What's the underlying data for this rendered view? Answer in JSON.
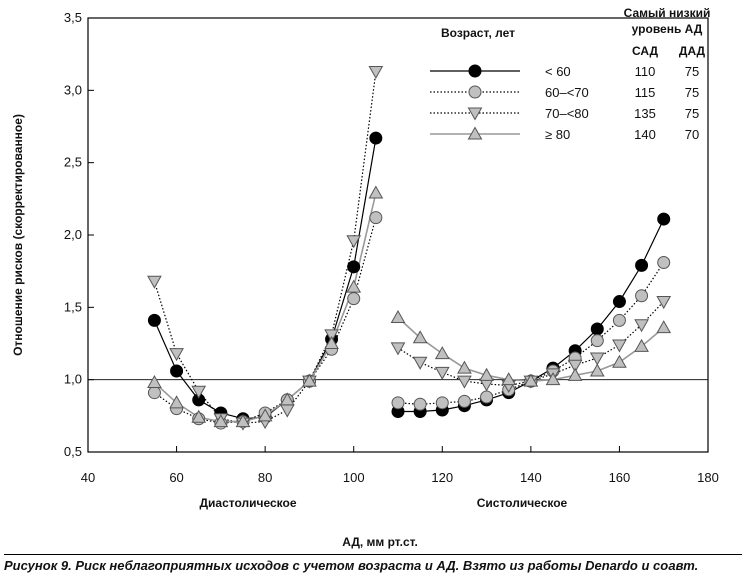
{
  "chart_data": {
    "type": "line",
    "ylabel": "Отношение рисков (скорректированное)",
    "xlabel": "АД, мм рт.ст.",
    "panel_labels": {
      "diastolic": "Диастолическое",
      "systolic": "Систолическое"
    },
    "ylim": [
      0.5,
      3.5
    ],
    "xlim": [
      40,
      180
    ],
    "y_ticks": [
      "0,5",
      "1,0",
      "1,5",
      "2,0",
      "2,5",
      "3,0",
      "3,5"
    ],
    "x_ticks": [
      "40",
      "60",
      "80",
      "100",
      "120",
      "140",
      "160",
      "180"
    ],
    "reference_line_y": 1.0,
    "grid": false,
    "legend": {
      "title": "Возраст, лет",
      "header_line1": "Самый низкий",
      "header_line2": "уровень АД",
      "col_sad": "САД",
      "col_dad": "ДАД",
      "rows": [
        {
          "label": "< 60",
          "sad": "110",
          "dad": "75"
        },
        {
          "label": "60–<70",
          "sad": "115",
          "dad": "75"
        },
        {
          "label": "70–<80",
          "sad": "135",
          "dad": "75"
        },
        {
          "label": "≥ 80",
          "sad": "140",
          "dad": "70"
        }
      ]
    },
    "series": [
      {
        "name": "< 60",
        "marker": "circle-filled",
        "line": "solid",
        "color": "#000000",
        "diastolic": {
          "x": [
            55,
            60,
            65,
            70,
            75,
            80,
            85,
            90,
            95,
            100,
            105
          ],
          "y": [
            1.41,
            1.06,
            0.86,
            0.77,
            0.73,
            0.74,
            0.86,
            0.99,
            1.28,
            1.78,
            2.67
          ]
        },
        "systolic": {
          "x": [
            110,
            115,
            120,
            125,
            130,
            135,
            140,
            145,
            150,
            155,
            160,
            165,
            170
          ],
          "y": [
            0.78,
            0.78,
            0.79,
            0.82,
            0.86,
            0.91,
            0.99,
            1.08,
            1.2,
            1.35,
            1.54,
            1.79,
            2.11
          ]
        }
      },
      {
        "name": "60–<70",
        "marker": "circle-gray",
        "line": "dotted",
        "color": "#c0c0c0",
        "diastolic": {
          "x": [
            55,
            60,
            65,
            70,
            75,
            80,
            85,
            90,
            95,
            100,
            105
          ],
          "y": [
            0.91,
            0.8,
            0.73,
            0.7,
            0.71,
            0.77,
            0.86,
            0.99,
            1.21,
            1.56,
            2.12
          ]
        },
        "systolic": {
          "x": [
            110,
            115,
            120,
            125,
            130,
            135,
            140,
            145,
            150,
            155,
            160,
            165,
            170
          ],
          "y": [
            0.84,
            0.83,
            0.84,
            0.85,
            0.88,
            0.93,
            0.99,
            1.06,
            1.15,
            1.27,
            1.41,
            1.58,
            1.81
          ]
        }
      },
      {
        "name": "70–<80",
        "marker": "triangle-down",
        "line": "dotted",
        "color": "#c0c0c0",
        "diastolic": {
          "x": [
            55,
            60,
            65,
            70,
            75,
            80,
            85,
            90,
            95,
            100,
            105
          ],
          "y": [
            1.68,
            1.18,
            0.92,
            0.73,
            0.7,
            0.71,
            0.79,
            0.99,
            1.31,
            1.96,
            3.13
          ]
        },
        "systolic": {
          "x": [
            110,
            115,
            120,
            125,
            130,
            135,
            140,
            145,
            150,
            155,
            160,
            165,
            170
          ],
          "y": [
            1.22,
            1.12,
            1.05,
            0.99,
            0.97,
            0.96,
            0.99,
            1.04,
            1.1,
            1.15,
            1.24,
            1.38,
            1.54
          ]
        }
      },
      {
        "name": "≥ 80",
        "marker": "triangle-up",
        "line": "solid-gray",
        "color": "#c0c0c0",
        "diastolic": {
          "x": [
            55,
            60,
            65,
            70,
            75,
            80,
            85,
            90,
            95,
            100,
            105
          ],
          "y": [
            0.98,
            0.84,
            0.74,
            0.71,
            0.71,
            0.75,
            0.86,
            0.99,
            1.25,
            1.64,
            2.29
          ]
        },
        "systolic": {
          "x": [
            110,
            115,
            120,
            125,
            130,
            135,
            140,
            145,
            150,
            155,
            160,
            165,
            170
          ],
          "y": [
            1.43,
            1.29,
            1.18,
            1.08,
            1.03,
            1.0,
            0.99,
            1.0,
            1.03,
            1.06,
            1.12,
            1.23,
            1.36
          ]
        }
      }
    ]
  },
  "caption": "Рисунок 9. Риск неблагоприятных исходов с учетом возраста и АД. Взято из работы Denardo и соавт."
}
